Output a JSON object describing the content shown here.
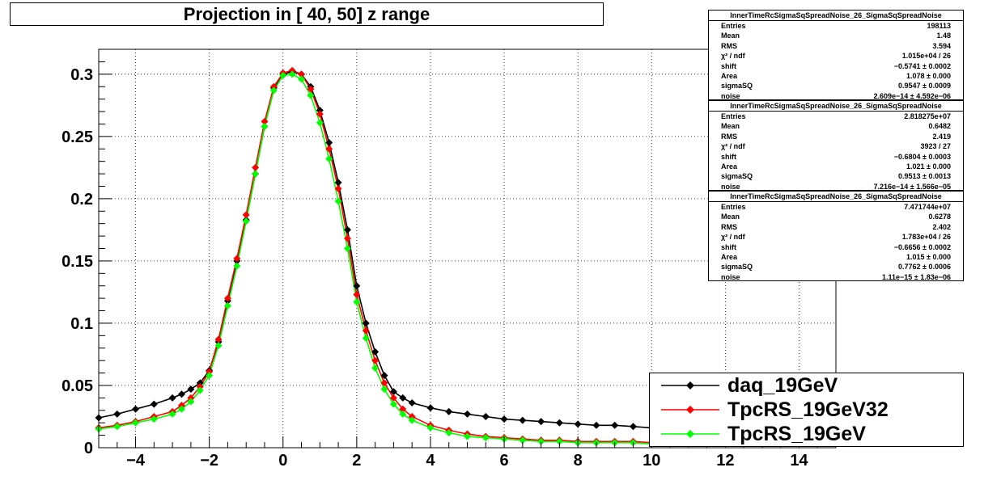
{
  "title": "Projection in [  40,  50] z range",
  "chart_data": {
    "type": "scatter",
    "title": "Projection in [  40,  50] z range",
    "xlim": [
      -5,
      15
    ],
    "ylim": [
      0,
      0.32
    ],
    "x_ticks": [
      -4,
      -2,
      0,
      2,
      4,
      6,
      8,
      10,
      12,
      14
    ],
    "x_tick_labels": [
      "−4",
      "−2",
      "0",
      "2",
      "4",
      "6",
      "8",
      "10",
      "12",
      "14"
    ],
    "y_ticks": [
      0,
      0.05,
      0.1,
      0.15,
      0.2,
      0.25,
      0.3
    ],
    "y_tick_labels": [
      "0",
      "0.05",
      "0.1",
      "0.15",
      "0.2",
      "0.25",
      "0.3"
    ],
    "grid": true,
    "legend_position": "bottom-right",
    "series": [
      {
        "name": "daq_19GeV",
        "color": "#000000",
        "x": [
          -5,
          -4.5,
          -4,
          -3.5,
          -3,
          -2.75,
          -2.5,
          -2.25,
          -2,
          -1.75,
          -1.5,
          -1.25,
          -1,
          -0.75,
          -0.5,
          -0.25,
          0,
          0.25,
          0.5,
          0.75,
          1,
          1.25,
          1.5,
          1.75,
          2,
          2.25,
          2.5,
          2.75,
          3,
          3.25,
          3.5,
          4,
          4.5,
          5,
          5.5,
          6,
          6.5,
          7,
          7.5,
          8,
          8.5,
          9,
          9.5,
          10
        ],
        "y": [
          0.024,
          0.027,
          0.031,
          0.035,
          0.04,
          0.043,
          0.047,
          0.052,
          0.062,
          0.085,
          0.118,
          0.15,
          0.183,
          0.22,
          0.258,
          0.289,
          0.3,
          0.302,
          0.3,
          0.29,
          0.271,
          0.245,
          0.213,
          0.175,
          0.13,
          0.1,
          0.077,
          0.058,
          0.045,
          0.04,
          0.036,
          0.032,
          0.029,
          0.027,
          0.025,
          0.023,
          0.022,
          0.021,
          0.02,
          0.019,
          0.018,
          0.018,
          0.017,
          0.016
        ]
      },
      {
        "name": "TpcRS_19GeV32",
        "color": "#ff0000",
        "x": [
          -5,
          -4.5,
          -4,
          -3.5,
          -3,
          -2.75,
          -2.5,
          -2.25,
          -2,
          -1.75,
          -1.5,
          -1.25,
          -1,
          -0.75,
          -0.5,
          -0.25,
          0,
          0.25,
          0.5,
          0.75,
          1,
          1.25,
          1.5,
          1.75,
          2,
          2.25,
          2.5,
          2.75,
          3,
          3.25,
          3.5,
          4,
          4.5,
          5,
          5.5,
          6,
          6.5,
          7,
          7.5,
          8,
          8.5,
          9,
          9.5,
          10
        ],
        "y": [
          0.016,
          0.018,
          0.021,
          0.025,
          0.029,
          0.034,
          0.04,
          0.049,
          0.061,
          0.087,
          0.12,
          0.152,
          0.187,
          0.225,
          0.262,
          0.29,
          0.301,
          0.303,
          0.3,
          0.288,
          0.268,
          0.24,
          0.208,
          0.168,
          0.123,
          0.094,
          0.07,
          0.052,
          0.04,
          0.031,
          0.025,
          0.018,
          0.014,
          0.011,
          0.009,
          0.008,
          0.007,
          0.006,
          0.006,
          0.005,
          0.005,
          0.005,
          0.005,
          0.004
        ]
      },
      {
        "name": "TpcRS_19GeV",
        "color": "#00ff00",
        "x": [
          -5,
          -4.5,
          -4,
          -3.5,
          -3,
          -2.75,
          -2.5,
          -2.25,
          -2,
          -1.75,
          -1.5,
          -1.25,
          -1,
          -0.75,
          -0.5,
          -0.25,
          0,
          0.25,
          0.5,
          0.75,
          1,
          1.25,
          1.5,
          1.75,
          2,
          2.25,
          2.5,
          2.75,
          3,
          3.25,
          3.5,
          4,
          4.5,
          5,
          5.5,
          6,
          6.5,
          7,
          7.5,
          8,
          8.5,
          9,
          9.5,
          10
        ],
        "y": [
          0.015,
          0.017,
          0.02,
          0.023,
          0.027,
          0.031,
          0.037,
          0.046,
          0.058,
          0.082,
          0.114,
          0.146,
          0.182,
          0.22,
          0.258,
          0.287,
          0.299,
          0.3,
          0.296,
          0.283,
          0.261,
          0.232,
          0.198,
          0.16,
          0.117,
          0.088,
          0.064,
          0.047,
          0.035,
          0.027,
          0.022,
          0.016,
          0.012,
          0.009,
          0.008,
          0.007,
          0.006,
          0.005,
          0.005,
          0.004,
          0.004,
          0.004,
          0.004,
          0.003
        ]
      }
    ]
  },
  "stats_boxes": [
    {
      "header": "InnerTimeRcSigmaSqSpreadNoise_26_SigmaSqSpreadNoise",
      "rows": [
        {
          "k": "Entries",
          "v": "198113"
        },
        {
          "k": "Mean",
          "v": "1.48"
        },
        {
          "k": "RMS",
          "v": "3.594"
        },
        {
          "k": "χ² / ndf",
          "v": "1.015e+04 / 26"
        },
        {
          "k": "shift",
          "v": "−0.5741 ± 0.0002"
        },
        {
          "k": "Area",
          "v": "1.078 ± 0.000"
        },
        {
          "k": "sigmaSQ",
          "v": "0.9547 ± 0.0009"
        },
        {
          "k": "noise",
          "v": "2.609e−14 ± 4.592e−06"
        }
      ]
    },
    {
      "header": "InnerTimeRcSigmaSqSpreadNoise_26_SigmaSqSpreadNoise",
      "rows": [
        {
          "k": "Entries",
          "v": "2.818275e+07"
        },
        {
          "k": "Mean",
          "v": "0.6482"
        },
        {
          "k": "RMS",
          "v": "2.419"
        },
        {
          "k": "χ² / ndf",
          "v": "3923 / 27"
        },
        {
          "k": "shift",
          "v": "−0.6804 ± 0.0003"
        },
        {
          "k": "Area",
          "v": "1.021 ± 0.000"
        },
        {
          "k": "sigmaSQ",
          "v": "0.9513 ± 0.0013"
        },
        {
          "k": "noise",
          "v": "7.216e−14 ± 1.566e−05"
        }
      ]
    },
    {
      "header": "InnerTimeRcSigmaSqSpreadNoise_26_SigmaSqSpreadNoise",
      "rows": [
        {
          "k": "Entries",
          "v": "7.471744e+07"
        },
        {
          "k": "Mean",
          "v": "0.6278"
        },
        {
          "k": "RMS",
          "v": "2.402"
        },
        {
          "k": "χ² / ndf",
          "v": "1.783e+04 / 26"
        },
        {
          "k": "shift",
          "v": "−0.6656 ± 0.0002"
        },
        {
          "k": "Area",
          "v": "1.015 ± 0.000"
        },
        {
          "k": "sigmaSQ",
          "v": "0.7762 ± 0.0006"
        },
        {
          "k": "noise",
          "v": "1.11e−15 ± 1.83e−06"
        }
      ]
    }
  ],
  "legend": [
    {
      "label": "daq_19GeV",
      "color": "#000000"
    },
    {
      "label": "TpcRS_19GeV32",
      "color": "#ff0000"
    },
    {
      "label": "TpcRS_19GeV",
      "color": "#00ff00"
    }
  ]
}
